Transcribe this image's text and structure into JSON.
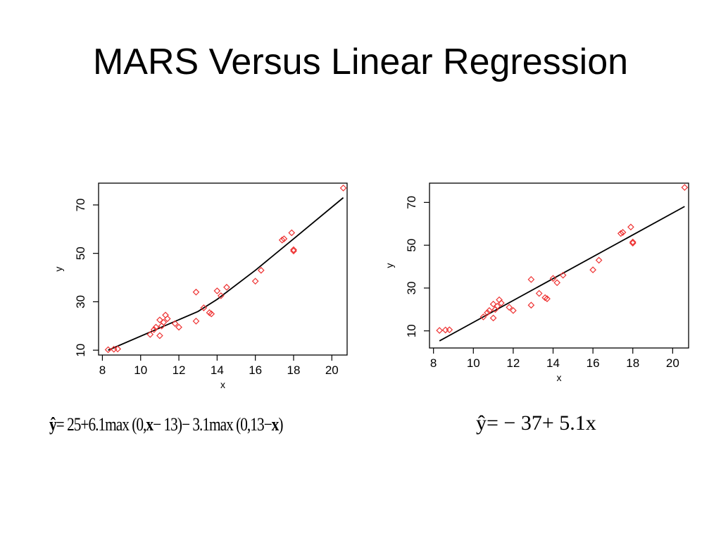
{
  "slide": {
    "title": "MARS Versus Linear Regression"
  },
  "chart_data": [
    {
      "type": "scatter",
      "title": "",
      "xlabel": "x",
      "ylabel": "y",
      "xlim": [
        7.8,
        20.8
      ],
      "ylim": [
        8,
        79
      ],
      "xticks": [
        8,
        10,
        12,
        14,
        16,
        18,
        20
      ],
      "yticks": [
        10,
        30,
        50,
        70
      ],
      "grid": false,
      "series": [
        {
          "kind": "points",
          "color": "#ee3333",
          "x": [
            8.3,
            8.6,
            8.8,
            10.5,
            10.7,
            10.8,
            11.0,
            11.0,
            11.1,
            11.2,
            11.3,
            11.4,
            11.8,
            12.0,
            12.9,
            12.9,
            13.3,
            13.6,
            13.7,
            14.0,
            14.2,
            14.5,
            16.0,
            16.3,
            17.4,
            17.5,
            17.9,
            18.0,
            18.0,
            20.6
          ],
          "y": [
            10.2,
            10.4,
            10.5,
            16.5,
            18.5,
            19.5,
            16,
            22.5,
            20,
            21.5,
            24.5,
            23,
            21,
            19.5,
            34,
            22,
            27.5,
            25.5,
            25,
            34.5,
            32.5,
            36,
            38.5,
            43,
            55.5,
            56,
            58.5,
            51.5,
            51,
            77
          ]
        },
        {
          "kind": "line",
          "color": "#000000",
          "x": [
            8.3,
            13.0,
            14.0,
            16.0,
            18.0,
            20.6
          ],
          "y": [
            10,
            26,
            31,
            43,
            56,
            73
          ]
        }
      ]
    },
    {
      "type": "scatter",
      "title": "",
      "xlabel": "x",
      "ylabel": "y",
      "xlim": [
        7.8,
        20.8
      ],
      "ylim": [
        2,
        79
      ],
      "xticks": [
        8,
        10,
        12,
        14,
        16,
        18,
        20
      ],
      "yticks": [
        10,
        30,
        50,
        70
      ],
      "grid": false,
      "series": [
        {
          "kind": "points",
          "color": "#ee3333",
          "x": [
            8.3,
            8.6,
            8.8,
            10.5,
            10.7,
            10.8,
            11.0,
            11.0,
            11.1,
            11.2,
            11.3,
            11.4,
            11.8,
            12.0,
            12.9,
            12.9,
            13.3,
            13.6,
            13.7,
            14.0,
            14.2,
            14.5,
            16.0,
            16.3,
            17.4,
            17.5,
            17.9,
            18.0,
            18.0,
            20.6
          ],
          "y": [
            10.2,
            10.4,
            10.5,
            16.5,
            18.5,
            19.5,
            16,
            22.5,
            20,
            21.5,
            24.5,
            23,
            21,
            19.5,
            34,
            22,
            27.5,
            25.5,
            25,
            34.5,
            32.5,
            36,
            38.5,
            43,
            55.5,
            56,
            58.5,
            51.5,
            51,
            77
          ]
        },
        {
          "kind": "line",
          "color": "#000000",
          "x": [
            8.3,
            20.6
          ],
          "y": [
            5.3,
            68.1
          ]
        }
      ]
    }
  ],
  "formulas": {
    "mars": {
      "hat": "ŷ",
      "eq": "= 25+6.1max (0,",
      "x1": "x",
      "mid": "− 13)− 3.1max (0,13−",
      "x2": "x",
      "end": ")"
    },
    "linear": "ŷ= − 37+ 5.1x"
  }
}
